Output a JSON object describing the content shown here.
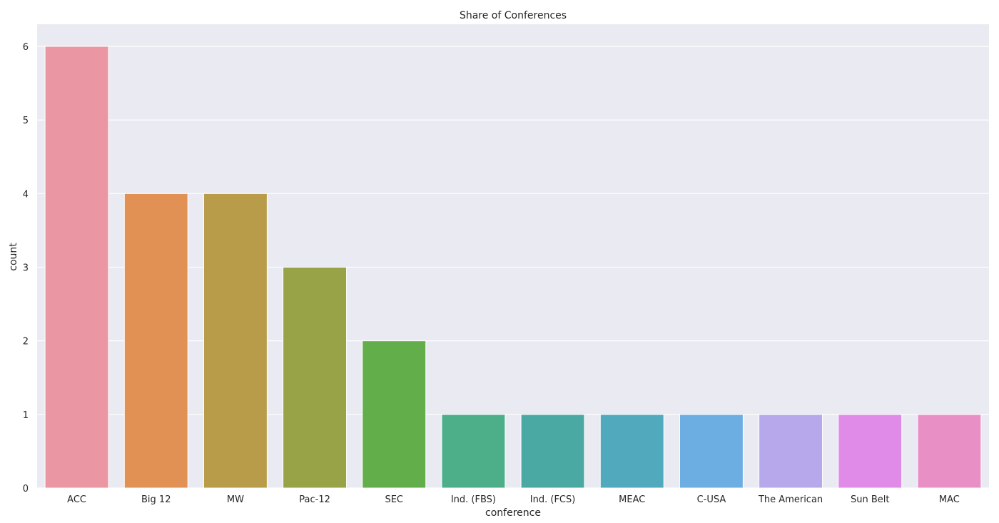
{
  "chart_data": {
    "type": "bar",
    "title": "Share of Conferences",
    "xlabel": "conference",
    "ylabel": "count",
    "categories": [
      "ACC",
      "Big 12",
      "MW",
      "Pac-12",
      "SEC",
      "Ind. (FBS)",
      "Ind. (FCS)",
      "MEAC",
      "C-USA",
      "The American",
      "Sun Belt",
      "MAC"
    ],
    "values": [
      6,
      4,
      4,
      3,
      2,
      1,
      1,
      1,
      1,
      1,
      1,
      1
    ],
    "colors": [
      "#ea96a3",
      "#e19153",
      "#b89c49",
      "#98a246",
      "#61ae4b",
      "#4caf8a",
      "#4ba9a4",
      "#51a9bd",
      "#6daee2",
      "#b6a8eb",
      "#e08be8",
      "#e890c6"
    ],
    "ylim": [
      0,
      6
    ],
    "yticks": [
      0,
      1,
      2,
      3,
      4,
      5,
      6
    ],
    "grid": true,
    "style": {
      "plot_background": "#eaeaf2",
      "grid_color": "#ffffff"
    }
  }
}
